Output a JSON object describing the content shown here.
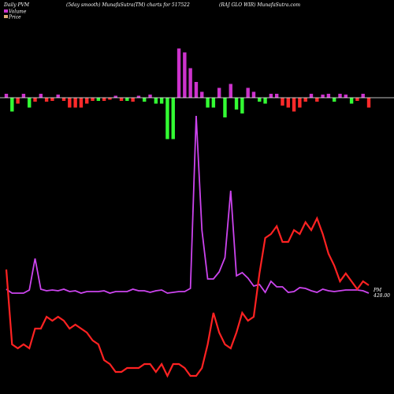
{
  "header": {
    "left": "Daily PVM",
    "center": "(5day smooth) MunafaSutra(TM) charts for 517522",
    "right": "(RAJ GLO WIR) MunafaSutra.com"
  },
  "legend": {
    "volume_label": "Volume",
    "price_label": "Price"
  },
  "labels": {
    "pvm_end": "PM",
    "price_end": "428.00"
  },
  "colors": {
    "background": "#000000",
    "up_bar": "#cc33cc",
    "down_bar": "#ff2a2a",
    "green_bar": "#33ff33",
    "pvm_line": "#cc44ee",
    "price_line": "#ff2222",
    "baseline": "#ffffff",
    "volume_swatch": "#cc33cc",
    "price_swatch": "#ddaa77"
  },
  "chart_data": {
    "type": "line",
    "series": [
      {
        "name": "Volume",
        "kind": "bar",
        "values": [
          {
            "v": 1.0,
            "c": "up"
          },
          {
            "v": -3.5,
            "c": "green"
          },
          {
            "v": -1.5,
            "c": "down"
          },
          {
            "v": 1.0,
            "c": "up"
          },
          {
            "v": -2.5,
            "c": "green"
          },
          {
            "v": -1.0,
            "c": "down"
          },
          {
            "v": 1.0,
            "c": "up"
          },
          {
            "v": -1.0,
            "c": "down"
          },
          {
            "v": -0.8,
            "c": "down"
          },
          {
            "v": 0.8,
            "c": "up"
          },
          {
            "v": -0.8,
            "c": "down"
          },
          {
            "v": -2.5,
            "c": "down"
          },
          {
            "v": -2.5,
            "c": "down"
          },
          {
            "v": -2.5,
            "c": "down"
          },
          {
            "v": -1.5,
            "c": "down"
          },
          {
            "v": -0.8,
            "c": "down"
          },
          {
            "v": -0.8,
            "c": "green"
          },
          {
            "v": -0.8,
            "c": "down"
          },
          {
            "v": -0.5,
            "c": "down"
          },
          {
            "v": 0.5,
            "c": "up"
          },
          {
            "v": -0.8,
            "c": "down"
          },
          {
            "v": -0.8,
            "c": "green"
          },
          {
            "v": -1.0,
            "c": "down"
          },
          {
            "v": 0.5,
            "c": "up"
          },
          {
            "v": -1.0,
            "c": "green"
          },
          {
            "v": 0.8,
            "c": "up"
          },
          {
            "v": -1.5,
            "c": "green"
          },
          {
            "v": -1.5,
            "c": "green"
          },
          {
            "v": -10.5,
            "c": "green"
          },
          {
            "v": -10.5,
            "c": "green"
          },
          {
            "v": 12.5,
            "c": "up"
          },
          {
            "v": 11.5,
            "c": "up"
          },
          {
            "v": 7.5,
            "c": "up"
          },
          {
            "v": 4.0,
            "c": "up"
          },
          {
            "v": 1.5,
            "c": "up"
          },
          {
            "v": -2.5,
            "c": "green"
          },
          {
            "v": -2.5,
            "c": "green"
          },
          {
            "v": 2.5,
            "c": "up"
          },
          {
            "v": -5.0,
            "c": "green"
          },
          {
            "v": 3.5,
            "c": "up"
          },
          {
            "v": -3.0,
            "c": "green"
          },
          {
            "v": -4.0,
            "c": "green"
          },
          {
            "v": 2.5,
            "c": "up"
          },
          {
            "v": 1.5,
            "c": "up"
          },
          {
            "v": -1.0,
            "c": "green"
          },
          {
            "v": -1.5,
            "c": "green"
          },
          {
            "v": 1.0,
            "c": "up"
          },
          {
            "v": 1.0,
            "c": "up"
          },
          {
            "v": -2.0,
            "c": "down"
          },
          {
            "v": -2.5,
            "c": "down"
          },
          {
            "v": -3.5,
            "c": "down"
          },
          {
            "v": -2.5,
            "c": "down"
          },
          {
            "v": -1.0,
            "c": "down"
          },
          {
            "v": 1.0,
            "c": "up"
          },
          {
            "v": -1.0,
            "c": "down"
          },
          {
            "v": 0.8,
            "c": "up"
          },
          {
            "v": 1.0,
            "c": "up"
          },
          {
            "v": -1.0,
            "c": "green"
          },
          {
            "v": 1.0,
            "c": "up"
          },
          {
            "v": 0.8,
            "c": "up"
          },
          {
            "v": -1.5,
            "c": "green"
          },
          {
            "v": -0.8,
            "c": "down"
          },
          {
            "v": 1.0,
            "c": "up"
          },
          {
            "v": -2.5,
            "c": "down"
          }
        ]
      },
      {
        "name": "PVM",
        "kind": "line",
        "values": [
          1.0,
          0.0,
          0.0,
          0.0,
          0.8,
          8.8,
          1.0,
          0.6,
          0.8,
          0.6,
          1.0,
          0.4,
          0.6,
          0.0,
          0.4,
          0.4,
          0.4,
          0.6,
          0.0,
          0.4,
          0.4,
          0.4,
          1.0,
          0.6,
          0.6,
          0.2,
          0.6,
          0.8,
          0.0,
          0.2,
          0.4,
          0.4,
          1.2,
          45.0,
          16.0,
          3.6,
          3.6,
          5.4,
          9.0,
          26.0,
          4.4,
          5.2,
          3.8,
          1.8,
          2.2,
          0.2,
          3.0,
          1.6,
          1.6,
          0.2,
          0.4,
          1.4,
          1.2,
          0.6,
          0.2,
          1.0,
          0.6,
          0.4,
          0.6,
          0.8,
          0.8,
          0.8,
          0.6,
          0.0
        ]
      },
      {
        "name": "Price",
        "kind": "line",
        "values": [
          3.0,
          -6.5,
          -7.0,
          -6.5,
          -7.0,
          -4.5,
          -4.5,
          -3.0,
          -3.5,
          -3.0,
          -3.5,
          -4.5,
          -4.0,
          -4.5,
          -5.0,
          -6.0,
          -6.5,
          -8.5,
          -9.0,
          -10.0,
          -10.0,
          -9.5,
          -9.5,
          -9.5,
          -9.0,
          -9.0,
          -10.0,
          -9.0,
          -10.5,
          -9.0,
          -9.0,
          -9.5,
          -10.5,
          -10.5,
          -9.5,
          -6.5,
          -2.5,
          -5.0,
          -6.5,
          -7.0,
          -5.0,
          -2.5,
          -3.5,
          -3.0,
          2.5,
          7.0,
          7.5,
          8.5,
          6.5,
          6.5,
          8.0,
          7.5,
          9.0,
          8.0,
          9.5,
          7.5,
          5.0,
          3.5,
          1.5,
          2.5,
          1.5,
          0.5,
          1.5,
          1.0
        ]
      }
    ],
    "grid": false,
    "legend_position": "top-left"
  }
}
